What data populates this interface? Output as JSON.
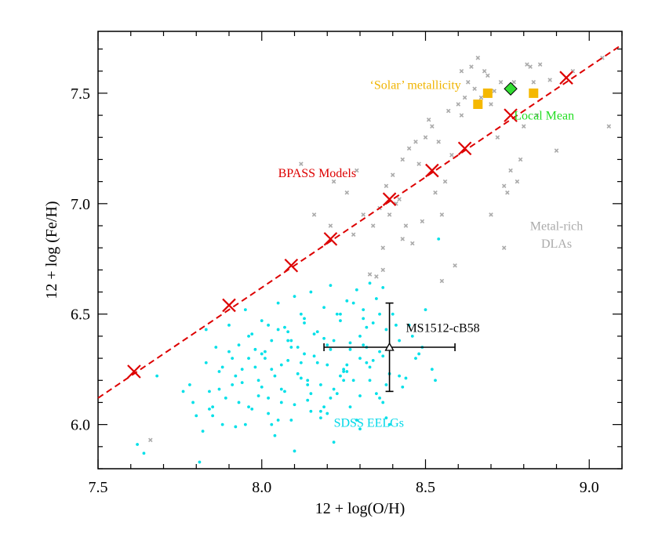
{
  "chart_data": {
    "type": "scatter",
    "title": "",
    "xlabel": "12 + log(O/H)",
    "ylabel": "12 + log (Fe/H)",
    "xlim": [
      7.5,
      9.1
    ],
    "ylim": [
      5.8,
      7.78
    ],
    "xticks": [
      "7.5",
      "8.0",
      "8.5",
      "9.0"
    ],
    "yticks": [
      "6.0",
      "6.5",
      "7.0",
      "7.5"
    ],
    "grid": false,
    "legend": "none",
    "annotations": [
      {
        "name": "solar-label",
        "text": "‘Solar’ metallicity",
        "x": 8.33,
        "y": 7.52,
        "color": "#f0b400"
      },
      {
        "name": "local-mean-label",
        "text": "Local Mean",
        "x": 8.77,
        "y": 7.38,
        "color": "#22dd22"
      },
      {
        "name": "bpass-label",
        "text": "BPASS Models",
        "x": 8.05,
        "y": 7.12,
        "color": "#dd0000"
      },
      {
        "name": "dla-label-1",
        "text": "Metal-rich",
        "x": 8.9,
        "y": 6.88,
        "color": "#aaaaaa"
      },
      {
        "name": "dla-label-2",
        "text": "DLAs",
        "x": 8.9,
        "y": 6.8,
        "color": "#aaaaaa"
      },
      {
        "name": "ms1512-label",
        "text": "MS1512-cB58",
        "x": 8.44,
        "y": 6.42,
        "color": "#000000"
      },
      {
        "name": "eelg-label",
        "text": "SDSS EELGs",
        "x": 8.22,
        "y": 5.99,
        "color": "#00d8e8"
      }
    ],
    "colors": {
      "bpass": "#dd0000",
      "solar": "#f5b800",
      "local_mean": "#33dd33",
      "dla": "#aaaaaa",
      "eelg": "#00e0e8",
      "ms1512": "#000000"
    },
    "bpass_line": {
      "x": [
        7.5,
        9.1
      ],
      "y": [
        6.12,
        7.72
      ]
    },
    "series": [
      {
        "name": "BPASS Models",
        "marker": "x",
        "x": [
          7.61,
          7.9,
          8.09,
          8.21,
          8.39,
          8.52,
          8.62,
          8.76,
          8.93
        ],
        "y": [
          6.24,
          6.54,
          6.72,
          6.84,
          7.02,
          7.15,
          7.25,
          7.4,
          7.57
        ]
      },
      {
        "name": "'Solar' metallicity",
        "marker": "square",
        "x": [
          8.66,
          8.69,
          8.83
        ],
        "y": [
          7.45,
          7.5,
          7.5
        ]
      },
      {
        "name": "Local Mean",
        "marker": "diamond",
        "x": [
          8.76
        ],
        "y": [
          7.52
        ]
      },
      {
        "name": "Metal-rich DLAs",
        "marker": "small-x",
        "x": [
          7.66,
          8.12,
          8.16,
          8.21,
          8.22,
          8.26,
          8.28,
          8.29,
          8.31,
          8.33,
          8.34,
          8.35,
          8.36,
          8.37,
          8.38,
          8.39,
          8.4,
          8.41,
          8.42,
          8.43,
          8.44,
          8.45,
          8.46,
          8.47,
          8.48,
          8.49,
          8.5,
          8.51,
          8.52,
          8.53,
          8.54,
          8.55,
          8.56,
          8.57,
          8.58,
          8.59,
          8.6,
          8.61,
          8.62,
          8.63,
          8.64,
          8.65,
          8.66,
          8.67,
          8.68,
          8.69,
          8.7,
          8.71,
          8.72,
          8.73,
          8.74,
          8.75,
          8.76,
          8.77,
          8.78,
          8.79,
          8.8,
          8.81,
          8.82,
          8.83,
          8.84,
          8.85,
          8.88,
          8.9,
          8.95,
          9.04,
          9.06,
          8.37,
          8.43,
          8.55,
          8.61,
          8.7,
          8.74
        ],
        "y": [
          5.93,
          7.18,
          6.95,
          6.9,
          7.1,
          7.05,
          6.86,
          7.15,
          6.95,
          6.68,
          6.9,
          6.67,
          6.98,
          6.7,
          7.08,
          6.95,
          7.13,
          7.0,
          7.02,
          7.2,
          6.9,
          7.25,
          6.82,
          7.28,
          7.18,
          6.92,
          7.3,
          7.38,
          7.35,
          7.05,
          7.28,
          6.65,
          7.1,
          7.42,
          7.22,
          6.72,
          7.45,
          7.6,
          7.48,
          7.55,
          7.62,
          7.52,
          7.66,
          7.48,
          7.6,
          7.58,
          7.45,
          7.51,
          7.3,
          7.55,
          7.08,
          7.05,
          7.15,
          7.55,
          7.1,
          7.2,
          7.35,
          7.63,
          7.62,
          7.55,
          7.4,
          7.63,
          7.56,
          7.24,
          7.6,
          7.66,
          7.35,
          6.8,
          6.84,
          6.95,
          7.4,
          6.95,
          6.8
        ]
      },
      {
        "name": "SDSS EELGs",
        "marker": "dot",
        "x": [
          7.62,
          7.64,
          7.68,
          7.7,
          7.78,
          7.79,
          7.8,
          7.81,
          7.82,
          7.83,
          7.84,
          7.85,
          7.86,
          7.87,
          7.88,
          7.89,
          7.9,
          7.91,
          7.92,
          7.93,
          7.94,
          7.95,
          7.96,
          7.97,
          7.98,
          7.99,
          8.0,
          8.01,
          8.02,
          8.03,
          8.04,
          8.05,
          8.06,
          8.07,
          8.08,
          8.09,
          8.1,
          8.11,
          8.12,
          8.13,
          8.14,
          8.15,
          8.16,
          8.17,
          8.18,
          8.19,
          8.2,
          8.21,
          8.22,
          8.23,
          8.24,
          8.25,
          8.26,
          8.27,
          8.28,
          8.29,
          8.3,
          8.31,
          8.32,
          8.33,
          8.34,
          8.35,
          8.36,
          8.37,
          8.38,
          8.4,
          8.42,
          8.45,
          8.48,
          8.5,
          8.52,
          8.54,
          7.92,
          7.95,
          7.98,
          8.0,
          8.02,
          8.04,
          8.06,
          8.08,
          8.1,
          8.12,
          8.14,
          8.16,
          8.18,
          8.2,
          8.22,
          8.24,
          8.26,
          8.28,
          8.3,
          8.32,
          8.34,
          8.36,
          8.38,
          7.9,
          7.93,
          7.96,
          7.99,
          8.01,
          8.03,
          8.05,
          8.07,
          8.09,
          8.11,
          8.13,
          8.15,
          8.17,
          8.19,
          8.21,
          8.23,
          8.25,
          8.27,
          8.29,
          8.31,
          8.33,
          8.35,
          8.37,
          8.39,
          8.41,
          8.43,
          8.46,
          8.49,
          7.87,
          7.94,
          8.0,
          8.06,
          8.12,
          8.18,
          8.24,
          8.3,
          8.36,
          8.44,
          7.85,
          7.97,
          8.03,
          8.09,
          8.15,
          8.21,
          8.27,
          8.33,
          8.39,
          8.47,
          7.83,
          7.91,
          8.05,
          8.13,
          8.19,
          8.25,
          8.31,
          8.37,
          8.53,
          7.76,
          7.84,
          7.88,
          7.96,
          8.02,
          8.08,
          8.14,
          8.2,
          8.26,
          8.32,
          8.38,
          8.42,
          8.22,
          8.3,
          8.1
        ],
        "y": [
          5.91,
          5.87,
          6.22,
          5.78,
          6.18,
          6.1,
          6.04,
          5.83,
          5.97,
          6.28,
          6.15,
          6.08,
          6.35,
          6.24,
          6.0,
          6.12,
          6.45,
          6.3,
          5.99,
          6.36,
          6.19,
          6.52,
          6.08,
          6.41,
          6.26,
          6.13,
          6.47,
          6.33,
          6.05,
          6.38,
          6.22,
          6.55,
          6.16,
          6.44,
          6.29,
          6.02,
          6.58,
          6.35,
          6.21,
          6.48,
          6.11,
          6.6,
          6.31,
          6.42,
          6.18,
          6.53,
          6.27,
          6.63,
          6.38,
          6.14,
          6.5,
          6.25,
          6.56,
          6.34,
          6.2,
          6.61,
          6.4,
          6.52,
          6.28,
          6.64,
          6.46,
          6.57,
          6.33,
          6.62,
          6.43,
          6.5,
          6.38,
          6.45,
          6.32,
          6.52,
          6.25,
          6.84,
          6.22,
          6.0,
          6.34,
          6.17,
          6.45,
          5.95,
          6.27,
          6.38,
          6.09,
          6.5,
          6.2,
          6.41,
          6.03,
          6.36,
          6.16,
          6.47,
          6.24,
          6.55,
          6.13,
          6.44,
          6.29,
          6.5,
          6.18,
          6.33,
          6.1,
          6.4,
          6.2,
          6.3,
          6.0,
          6.43,
          6.15,
          6.35,
          6.23,
          6.46,
          6.06,
          6.28,
          6.39,
          6.12,
          6.5,
          6.2,
          6.37,
          6.02,
          6.48,
          6.26,
          6.14,
          6.31,
          6.23,
          6.45,
          6.17,
          6.4,
          6.35,
          6.16,
          6.25,
          6.32,
          6.1,
          6.28,
          6.06,
          6.22,
          6.3,
          6.12,
          6.21,
          6.04,
          6.07,
          6.25,
          6.38,
          6.14,
          6.34,
          6.08,
          6.2,
          6.0,
          6.3,
          6.43,
          6.18,
          6.02,
          6.32,
          6.08,
          6.24,
          6.36,
          6.1,
          6.2,
          6.15,
          6.07,
          6.26,
          6.3,
          6.12,
          6.42,
          6.18,
          6.05,
          6.27,
          6.35,
          6.03,
          6.22,
          5.92,
          5.98,
          5.88
        ],
        "note_extra": []
      },
      {
        "name": "MS1512-cB58",
        "marker": "triangle",
        "x": [
          8.39
        ],
        "y": [
          6.35
        ],
        "x_err": [
          0.2,
          0.2
        ],
        "y_err": [
          0.2,
          0.2
        ]
      }
    ]
  }
}
